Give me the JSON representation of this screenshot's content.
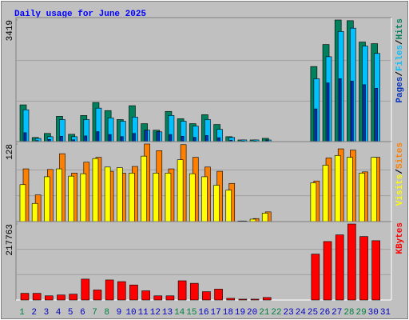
{
  "chart_data": {
    "type": "bar",
    "title": "Daily usage for June 2025",
    "categories": [
      "1",
      "2",
      "3",
      "4",
      "5",
      "6",
      "7",
      "8",
      "9",
      "10",
      "11",
      "12",
      "13",
      "14",
      "15",
      "16",
      "17",
      "18",
      "19",
      "20",
      "21",
      "22",
      "23",
      "24",
      "25",
      "26",
      "27",
      "28",
      "29",
      "30",
      "31"
    ],
    "category_colors": [
      "#008040",
      "#0000c0",
      "#0000c0",
      "#0000c0",
      "#0000c0",
      "#0000c0",
      "#008040",
      "#008040",
      "#0000c0",
      "#0000c0",
      "#0000c0",
      "#0000c0",
      "#0000c0",
      "#008040",
      "#008040",
      "#0000c0",
      "#0000c0",
      "#0000c0",
      "#0000c0",
      "#0000c0",
      "#008040",
      "#008040",
      "#0000c0",
      "#0000c0",
      "#0000c0",
      "#0000c0",
      "#0000c0",
      "#008040",
      "#008040",
      "#0000c0",
      "#0000c0"
    ],
    "legend_separator": "/",
    "panels": [
      {
        "ylim": [
          0,
          3419
        ],
        "yticks": [
          3419
        ],
        "series": [
          {
            "name": "Hits",
            "color": "#00805c",
            "values": [
              1033,
              115,
              230,
              711,
              206,
              734,
              1101,
              872,
              620,
              1010,
              505,
              321,
              849,
              643,
              505,
              757,
              482,
              138,
              46,
              46,
              92,
              0,
              0,
              0,
              2111,
              2731,
              3419,
              3400,
              2800,
              2754,
              0
            ]
          },
          {
            "name": "Files",
            "color": "#00c0ff",
            "values": [
              895,
              90,
              138,
              620,
              138,
              620,
              941,
              666,
              574,
              689,
              321,
              275,
              734,
              574,
              436,
              620,
              344,
              115,
              46,
              46,
              46,
              0,
              0,
              0,
              1767,
              2387,
              3098,
              3190,
              2685,
              2479,
              0
            ]
          },
          {
            "name": "Pages",
            "color": "#0030c0",
            "values": [
              250,
              30,
              60,
              150,
              50,
              160,
              280,
              200,
              140,
              230,
              320,
              280,
              200,
              150,
              120,
              170,
              110,
              40,
              15,
              15,
              30,
              0,
              0,
              0,
              920,
              1650,
              1770,
              1700,
              1600,
              1500,
              0
            ]
          }
        ]
      },
      {
        "ylim": [
          0,
          128
        ],
        "yticks": [
          128
        ],
        "series": [
          {
            "name": "Sites",
            "color": "#ff8000",
            "values": [
              87,
              44,
              86,
              112,
              80,
              98,
              106,
              83,
              80,
              91,
              128,
              117,
              87,
              127,
              106,
              90,
              83,
              63,
              1,
              5,
              16,
              0,
              0,
              0,
              67,
              105,
              120,
              118,
              82,
              106,
              0
            ]
          },
          {
            "name": "Visits",
            "color": "#ffff00",
            "values": [
              61,
              30,
              74,
              87,
              75,
              79,
              104,
              90,
              89,
              80,
              108,
              80,
              80,
              102,
              79,
              74,
              60,
              52,
              1,
              4,
              14,
              0,
              0,
              0,
              64,
              93,
              109,
              106,
              80,
              106,
              0
            ]
          }
        ]
      },
      {
        "ylim": [
          0,
          217763
        ],
        "yticks": [
          217763
        ],
        "series": [
          {
            "name": "KBytes",
            "color": "#ff0000",
            "values": [
              19144,
              19144,
              11965,
              14358,
              16751,
              59825,
              28716,
              57432,
              52646,
              43074,
              26323,
              11965,
              11965,
              55039,
              47860,
              23930,
              31109,
              4786,
              2393,
              2393,
              7179,
              0,
              0,
              0,
              131615,
              167510,
              186654,
              217763,
              181868,
              169903,
              0
            ]
          }
        ]
      }
    ]
  }
}
